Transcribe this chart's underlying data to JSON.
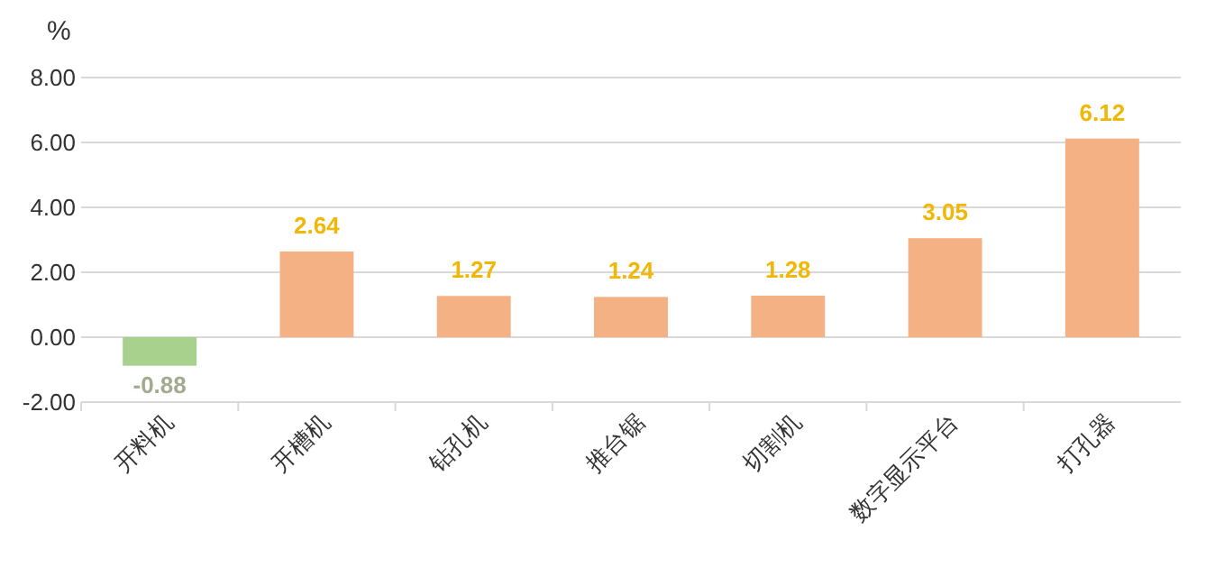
{
  "chart_data": {
    "type": "bar",
    "ylabel": "%",
    "categories": [
      "开料机",
      "开槽机",
      "钻孔机",
      "推台锯",
      "切割机",
      "数字显示平台",
      "打孔器"
    ],
    "values": [
      -0.88,
      2.64,
      1.27,
      1.24,
      1.28,
      3.05,
      6.12
    ],
    "colors": [
      "#a9d18e",
      "#f4b183",
      "#f4b183",
      "#f4b183",
      "#f4b183",
      "#f4b183",
      "#f4b183"
    ],
    "ylim": [
      -2,
      8
    ],
    "yticks": [
      {
        "value": -2,
        "label": "-2.00"
      },
      {
        "value": 0,
        "label": "0.00"
      },
      {
        "value": 2,
        "label": "2.00"
      },
      {
        "value": 4,
        "label": "4.00"
      },
      {
        "value": 6,
        "label": "6.00"
      },
      {
        "value": 8,
        "label": "8.00"
      }
    ],
    "grid": true,
    "data_labels": true
  }
}
